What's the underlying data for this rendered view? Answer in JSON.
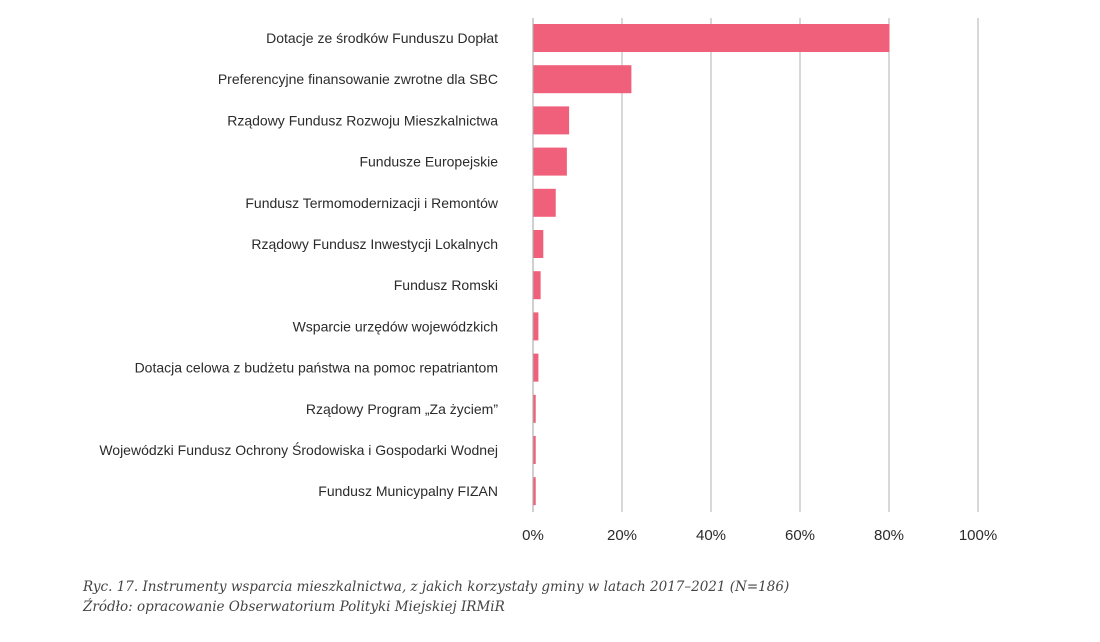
{
  "chart_data": {
    "type": "bar",
    "orientation": "horizontal",
    "categories": [
      "Dotacje ze środków Funduszu Dopłat",
      "Preferencyjne finansowanie zwrotne dla SBC",
      "Rządowy Fundusz Rozwoju Mieszkalnictwa",
      "Fundusze Europejskie",
      "Fundusz Termomodernizacji i Remontów",
      "Rządowy Fundusz Inwestycji Lokalnych",
      "Fundusz Romski",
      "Wsparcie urzędów wojewódzkich",
      "Dotacja celowa z budżetu państwa na pomoc repatriantom",
      "Rządowy Program „Za życiem”",
      "Wojewódzki Fundusz Ochrony Środowiska i Gospodarki Wodnej",
      "Fundusz Municypalny FIZAN"
    ],
    "values": [
      80,
      22,
      8,
      7.5,
      5,
      2.2,
      1.6,
      1.1,
      1.1,
      0.5,
      0.5,
      0.5
    ],
    "unit": "%",
    "xlim": [
      0,
      100
    ],
    "xticks": [
      "0%",
      "20%",
      "40%",
      "60%",
      "80%",
      "100%"
    ],
    "grid": "vertical",
    "bar_color": "#f0607a",
    "grid_color": "#b0b0b0",
    "legend": "none"
  },
  "caption": {
    "line1": "Ryc. 17. Instrumenty wsparcia mieszkalnictwa, z jakich korzystały gminy w latach 2017–2021 (N=186)",
    "line2": "Źródło: opracowanie Obserwatorium Polityki Miejskiej IRMiR"
  }
}
